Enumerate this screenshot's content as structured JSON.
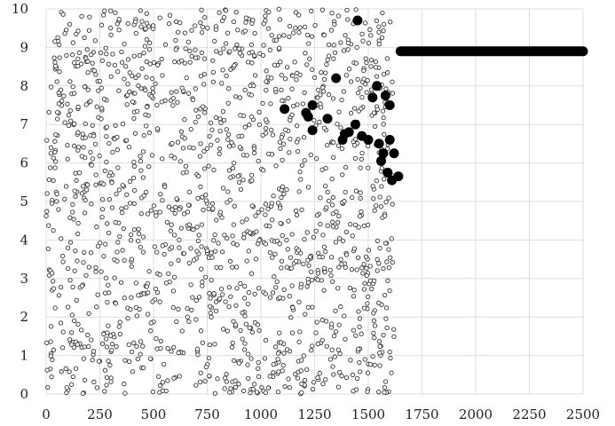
{
  "chart_data": {
    "type": "scatter",
    "title": "",
    "xlabel": "",
    "ylabel": "",
    "xlim": [
      0,
      2500
    ],
    "ylim": [
      0,
      10
    ],
    "grid": true,
    "x_ticks": [
      "0",
      "250",
      "500",
      "750",
      "1000",
      "1250",
      "1500",
      "1750",
      "2000",
      "2250",
      "2500"
    ],
    "y_ticks": [
      "0",
      "1",
      "2",
      "3",
      "4",
      "5",
      "6",
      "7",
      "8",
      "9",
      "10"
    ],
    "background_points": {
      "description_in_chart": "",
      "x_range": [
        0,
        1620
      ],
      "y_range": [
        0,
        10
      ],
      "marker": "hollow-circle",
      "approx_count": 1600
    },
    "series": [
      {
        "marker": "filled-circle",
        "points": [
          [
            1450,
            9.7
          ],
          [
            1350,
            8.2
          ],
          [
            1540,
            8.0
          ],
          [
            1580,
            7.75
          ],
          [
            1520,
            7.7
          ],
          [
            1600,
            7.5
          ],
          [
            1240,
            7.5
          ],
          [
            1110,
            7.4
          ],
          [
            1210,
            7.3
          ],
          [
            1220,
            7.2
          ],
          [
            1310,
            7.15
          ],
          [
            1440,
            7.0
          ],
          [
            1240,
            6.85
          ],
          [
            1410,
            6.8
          ],
          [
            1390,
            6.75
          ],
          [
            1470,
            6.7
          ],
          [
            1380,
            6.6
          ],
          [
            1500,
            6.6
          ],
          [
            1600,
            6.6
          ],
          [
            1550,
            6.5
          ],
          [
            1620,
            6.25
          ],
          [
            1570,
            6.25
          ],
          [
            1560,
            6.05
          ],
          [
            1590,
            5.75
          ],
          [
            1640,
            5.65
          ],
          [
            1610,
            5.55
          ]
        ]
      },
      {
        "marker": "filled-circle-dense",
        "x_range": [
          1650,
          2500
        ],
        "y": 8.9
      }
    ],
    "colors": {
      "grid": "#dddddd",
      "hollow_stroke": "#333333",
      "filled": "#000000"
    }
  }
}
